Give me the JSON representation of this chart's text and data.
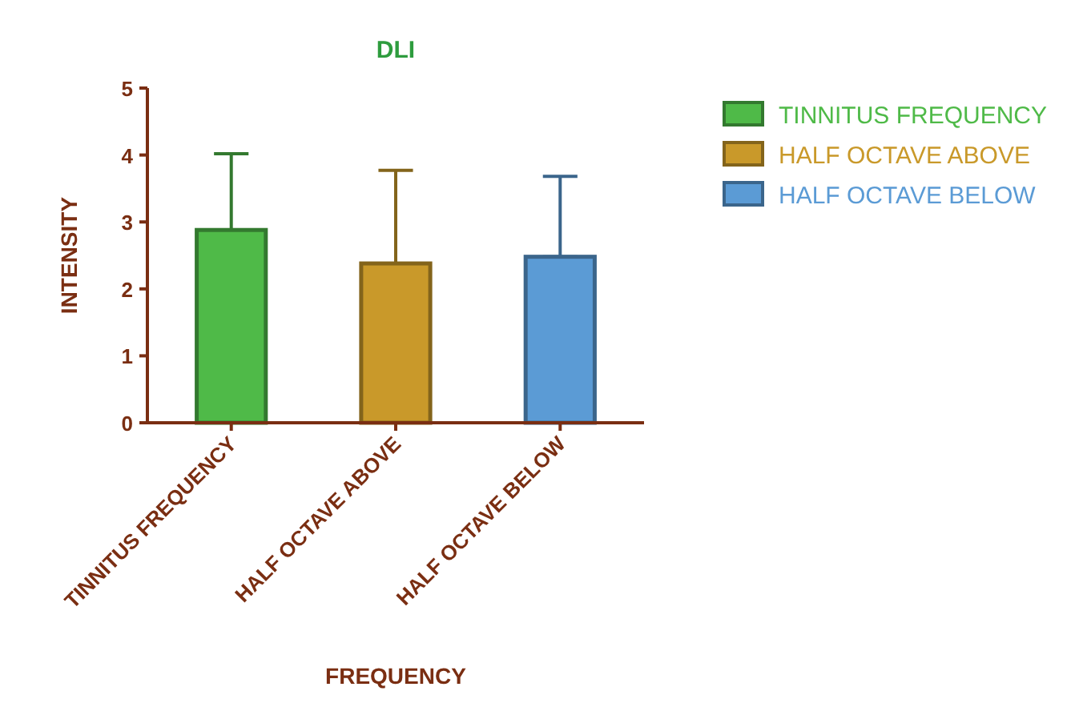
{
  "chart_data": {
    "type": "bar",
    "title": "DLI",
    "xlabel": "FREQUENCY",
    "ylabel": "INTENSITY",
    "categories": [
      "TINNITUS FREQUENCY",
      "HALF OCTAVE ABOVE",
      "HALF OCTAVE BELOW"
    ],
    "series": [
      {
        "name": "TINNITUS FREQUENCY",
        "color": "#4fba48",
        "values": [
          2.88,
          null,
          null
        ],
        "errors": [
          [
            2.88,
            4.02
          ],
          null,
          null
        ]
      },
      {
        "name": "HALF OCTAVE ABOVE",
        "color": "#c9992a",
        "values": [
          null,
          2.38,
          null
        ],
        "errors": [
          null,
          [
            2.38,
            3.77
          ],
          null
        ]
      },
      {
        "name": "HALF OCTAVE BELOW",
        "color": "#5b9bd5",
        "values": [
          null,
          null,
          2.48
        ],
        "errors": [
          null,
          null,
          [
            2.48,
            3.68
          ]
        ]
      }
    ],
    "ylim": [
      0,
      5
    ],
    "yticks": [
      0,
      1,
      2,
      3,
      4,
      5
    ],
    "grid": false,
    "legend": "right"
  }
}
